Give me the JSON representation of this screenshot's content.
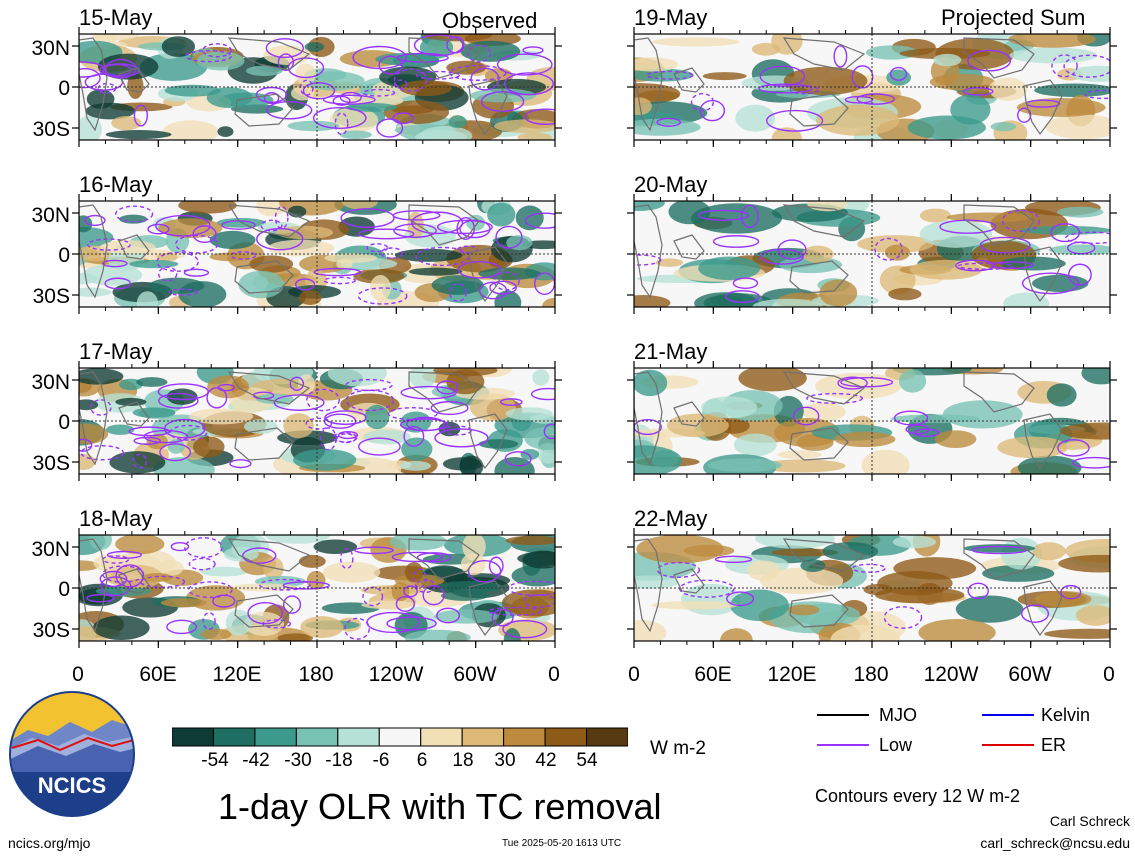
{
  "header": {
    "left": "Observed",
    "right": "Projected Sum"
  },
  "panels": {
    "left": [
      "15-May",
      "16-May",
      "17-May",
      "18-May"
    ],
    "right": [
      "19-May",
      "20-May",
      "21-May",
      "22-May"
    ]
  },
  "lat_labels": [
    "30N",
    "0",
    "30S"
  ],
  "lon_labels": [
    "0",
    "60E",
    "120E",
    "180",
    "120W",
    "60W",
    "0"
  ],
  "colorbar": {
    "labels": [
      "-54",
      "-42",
      "-30",
      "-18",
      "-6",
      "6",
      "18",
      "30",
      "42",
      "54"
    ],
    "colors": [
      "#0e3b33",
      "#1e6e62",
      "#3b9a8c",
      "#78c2b3",
      "#b6e1d6",
      "#f7f7f7",
      "#f1dfb6",
      "#ddb877",
      "#bd8a3e",
      "#8e5a17",
      "#583a10"
    ],
    "units": "W m-2"
  },
  "legend": {
    "items": [
      {
        "label": "MJO",
        "color": "#000000"
      },
      {
        "label": "Kelvin",
        "color": "#0000ee"
      },
      {
        "label": "Low",
        "color": "#9933ff"
      },
      {
        "label": "ER",
        "color": "#dd0000"
      }
    ],
    "contours": "Contours every 12 W m-2"
  },
  "title": "1-day OLR with TC removal",
  "logo": {
    "text": "NCICS"
  },
  "footer": {
    "url": "ncics.org/mjo",
    "timestamp": "Tue 2025-05-20 1613 UTC",
    "author": "Carl Schreck",
    "email": "carl_schreck@ncsu.edu"
  }
}
